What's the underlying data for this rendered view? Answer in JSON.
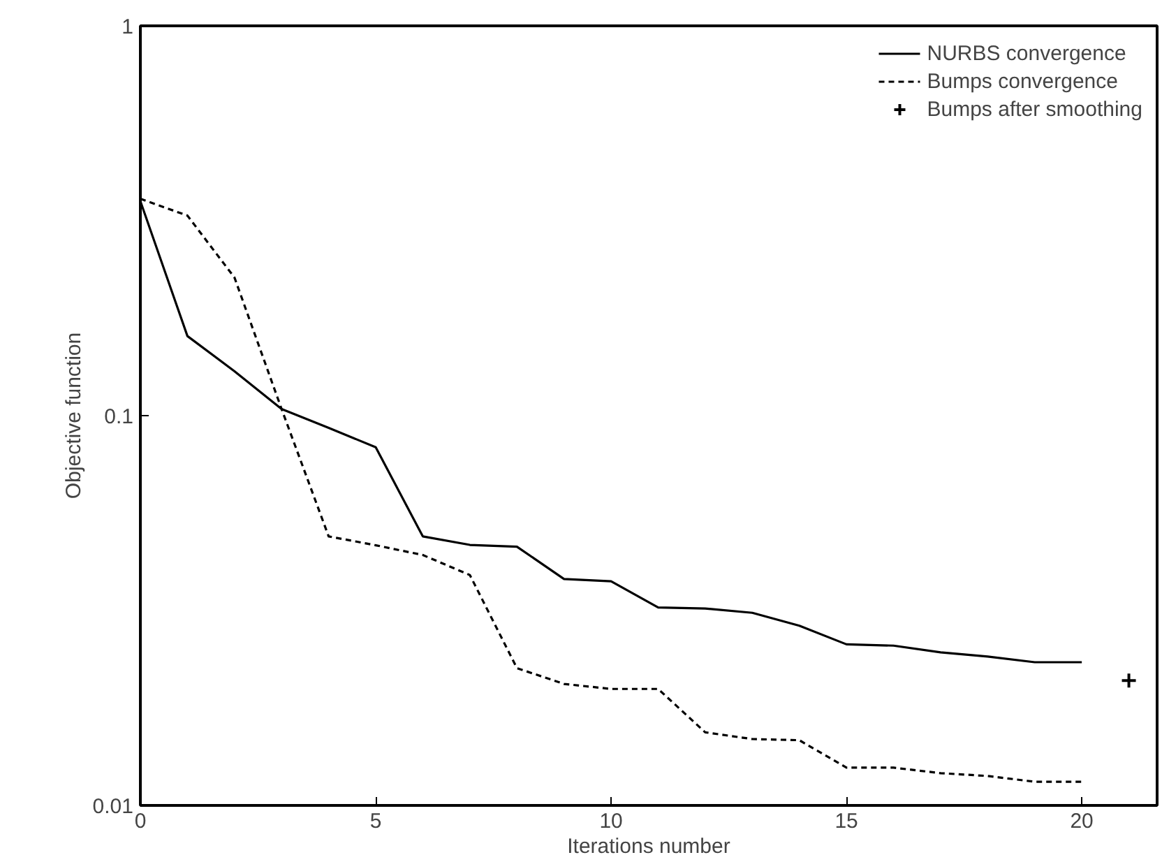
{
  "chart_data": {
    "type": "line",
    "xlabel": "Iterations number",
    "ylabel": "Objective function",
    "log": "y",
    "xlim": [
      0,
      21.6
    ],
    "ylim": [
      0.01,
      1
    ],
    "xticks": [
      0,
      5,
      10,
      15,
      20
    ],
    "yticks": [
      1,
      0.1,
      0.01
    ],
    "grid": false,
    "legend": "top right",
    "series": [
      {
        "name": "NURBS convergence",
        "line_style": "solid",
        "color": "#000000",
        "x": [
          0,
          1,
          2,
          3,
          4,
          5,
          6,
          7,
          8,
          9,
          10,
          11,
          12,
          13,
          14,
          15,
          16,
          17,
          18,
          19,
          20
        ],
        "values": [
          0.355,
          0.16,
          0.13,
          0.104,
          0.093,
          0.083,
          0.049,
          0.0466,
          0.0461,
          0.0381,
          0.0376,
          0.0322,
          0.032,
          0.0312,
          0.0289,
          0.0259,
          0.0257,
          0.0247,
          0.0241,
          0.0233,
          0.0233
        ]
      },
      {
        "name": "Bumps convergence",
        "line_style": "dashed",
        "color": "#000000",
        "x": [
          0,
          1,
          2,
          3,
          4,
          5,
          6,
          7,
          8,
          9,
          10,
          11,
          12,
          13,
          14,
          15,
          16,
          17,
          18,
          19,
          20
        ],
        "values": [
          0.36,
          0.326,
          0.226,
          0.104,
          0.049,
          0.0465,
          0.0439,
          0.039,
          0.0225,
          0.0205,
          0.0199,
          0.0199,
          0.0154,
          0.0148,
          0.0147,
          0.0125,
          0.0125,
          0.0121,
          0.0119,
          0.0115,
          0.0115
        ]
      },
      {
        "name": "Bumps after smoothing",
        "type": "scatter",
        "marker": "cross",
        "color": "#000000",
        "x": [
          21
        ],
        "values": [
          0.0209
        ]
      }
    ]
  }
}
